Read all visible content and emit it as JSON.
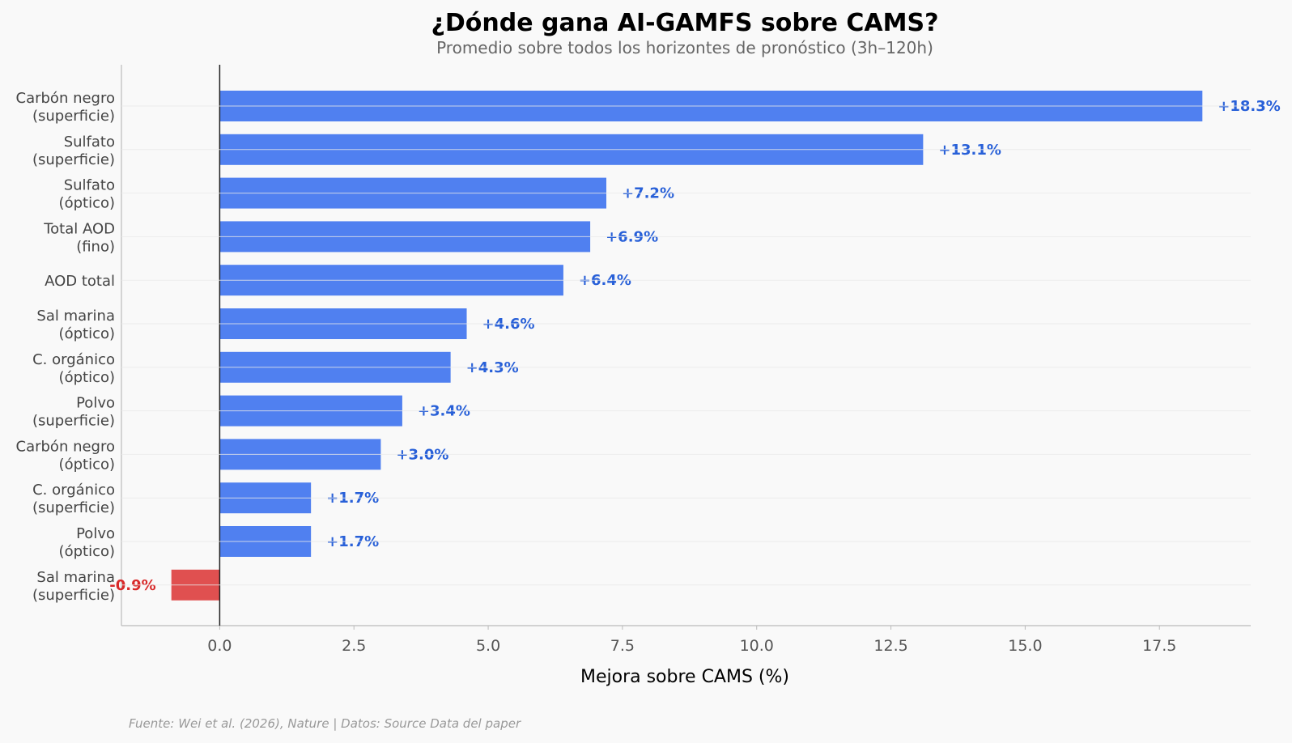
{
  "chart_data": {
    "type": "bar",
    "orientation": "horizontal",
    "title": "¿Dónde gana AI-GAMFS sobre CAMS?",
    "subtitle": "Promedio sobre todos los horizontes de pronóstico (3h–120h)",
    "xlabel": "Mejora sobre CAMS (%)",
    "ylabel": "",
    "xlim": [
      -1.83,
      19.2
    ],
    "xticks": [
      "0.0",
      "2.5",
      "5.0",
      "7.5",
      "10.0",
      "12.5",
      "15.0",
      "17.5"
    ],
    "xtick_values": [
      0,
      2.5,
      5,
      7.5,
      10,
      12.5,
      15,
      17.5
    ],
    "grid": "horizontal",
    "categories": [
      [
        "Carbón negro",
        "(superficie)"
      ],
      [
        "Sulfato",
        "(superficie)"
      ],
      [
        "Sulfato",
        "(óptico)"
      ],
      [
        "Total AOD",
        "(fino)"
      ],
      [
        "AOD total"
      ],
      [
        "Sal marina",
        "(óptico)"
      ],
      [
        "C. orgánico",
        "(óptico)"
      ],
      [
        "Polvo",
        "(superficie)"
      ],
      [
        "Carbón negro",
        "(óptico)"
      ],
      [
        "C. orgánico",
        "(superficie)"
      ],
      [
        "Polvo",
        "(óptico)"
      ],
      [
        "Sal marina",
        "(superficie)"
      ]
    ],
    "values": [
      18.3,
      13.1,
      7.2,
      6.9,
      6.4,
      4.6,
      4.3,
      3.4,
      3.0,
      1.7,
      1.7,
      -0.9
    ],
    "value_labels": [
      "+18.3%",
      "+13.1%",
      "+7.2%",
      "+6.9%",
      "+6.4%",
      "+4.6%",
      "+4.3%",
      "+3.4%",
      "+3.0%",
      "+1.7%",
      "+1.7%",
      "-0.9%"
    ],
    "colors": {
      "positive": "#5080f0",
      "negative": "#e05050",
      "positive_label": "#2860d8",
      "negative_label": "#d82828",
      "zero_line": "#222222",
      "grid": "#e8e8e8",
      "axis": "#bbbbbb"
    }
  },
  "footer": "Fuente: Wei et al. (2026), Nature | Datos: Source Data del paper"
}
